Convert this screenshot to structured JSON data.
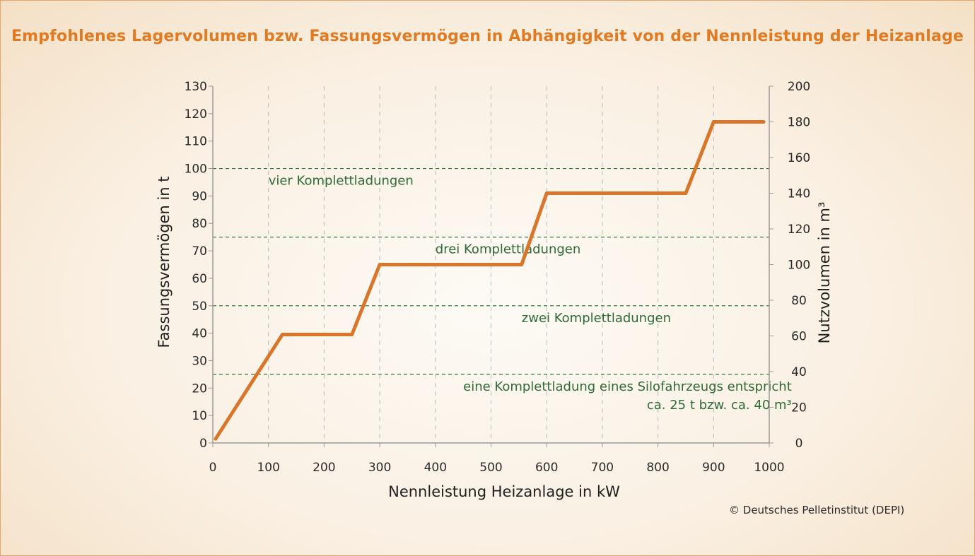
{
  "title": "Empfohlenes Lagervolumen bzw. Fassungsvermögen in Abhängigkeit von der Nennleistung der Heizanlage",
  "credit": "© Deutsches Pelletinstitut (DEPI)",
  "chart_data": {
    "type": "line",
    "xlabel": "Nennleistung Heizanlage in kW",
    "ylabel": "Fassungsvermögen in t",
    "y2label": "Nutzvolumen in m³",
    "xlim": [
      0,
      1000
    ],
    "ylim": [
      0,
      130
    ],
    "y2lim": [
      0,
      200
    ],
    "x_ticks": [
      0,
      100,
      200,
      300,
      400,
      500,
      600,
      700,
      800,
      900,
      1000
    ],
    "x_tick_labels": [
      "0",
      "100",
      "200",
      "300",
      "400",
      "500",
      "600",
      "700",
      "800",
      "900",
      "1000"
    ],
    "y_ticks": [
      0,
      10,
      20,
      30,
      40,
      50,
      60,
      70,
      80,
      90,
      100,
      110,
      120,
      130
    ],
    "y_tick_labels": [
      "0",
      "10",
      "20",
      "30",
      "40",
      "50",
      "60",
      "70",
      "80",
      "90",
      "100",
      "110",
      "120",
      "130"
    ],
    "y2_ticks": [
      0,
      20,
      40,
      60,
      80,
      100,
      120,
      140,
      160,
      180,
      200
    ],
    "y2_tick_labels": [
      "0",
      "20",
      "40",
      "60",
      "80",
      "100",
      "120",
      "140",
      "160",
      "180",
      "200"
    ],
    "grid_x": true,
    "series": [
      {
        "x": [
          5,
          125,
          250,
          300,
          555,
          600,
          850,
          900,
          990
        ],
        "y": [
          1.5,
          39.5,
          39.5,
          65,
          65,
          91,
          91,
          117,
          117
        ],
        "color": "#d8772b"
      }
    ],
    "reference_lines": [
      {
        "y": 25,
        "label": "eine Komplettladung eines Silofahrzeugs entspricht",
        "label2": "ca. 25 t bzw. ca. 40 m³",
        "label_x": 450
      },
      {
        "y": 50,
        "label": "zwei Komplettladungen",
        "label_x": 555
      },
      {
        "y": 75,
        "label": "drei Komplettladungen",
        "label_x": 400
      },
      {
        "y": 100,
        "label": "vier Komplettladungen",
        "label_x": 100
      }
    ],
    "reference_color": "#2e7d3e"
  }
}
